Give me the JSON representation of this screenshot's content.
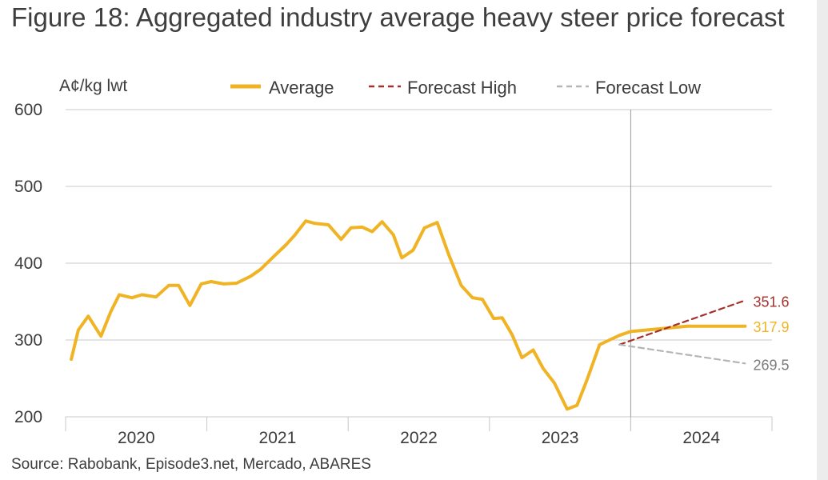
{
  "title": "Figure 18: Aggregated industry average heavy steer price forecast",
  "source": "Source: Rabobank, Episode3.net, Mercado, ABARES",
  "colors": {
    "average": "#f0b323",
    "high": "#a5302b",
    "low": "#b5b5b5",
    "grid": "#c8c8c8"
  },
  "chart_data": {
    "type": "line",
    "ylabel": "A¢/kg lwt",
    "ylim": [
      200,
      600
    ],
    "yticks": [
      200,
      300,
      400,
      500,
      600
    ],
    "xlim": [
      2019.58,
      2024.58
    ],
    "year_labels": [
      "2020",
      "2021",
      "2022",
      "2023",
      "2024"
    ],
    "forecast_start": 2023.58,
    "legend": [
      "Average",
      "Forecast High",
      "Forecast Low"
    ],
    "series": [
      {
        "name": "Average",
        "color": "#f0b323",
        "x": [
          2019.62,
          2019.67,
          2019.74,
          2019.83,
          2019.9,
          2019.96,
          2020.05,
          2020.12,
          2020.22,
          2020.31,
          2020.38,
          2020.46,
          2020.54,
          2020.61,
          2020.7,
          2020.79,
          2020.89,
          2020.96,
          2021.06,
          2021.14,
          2021.2,
          2021.28,
          2021.34,
          2021.44,
          2021.53,
          2021.6,
          2021.68,
          2021.75,
          2021.82,
          2021.9,
          2021.96,
          2022.04,
          2022.12,
          2022.21,
          2022.29,
          2022.38,
          2022.46,
          2022.53,
          2022.61,
          2022.67,
          2022.74,
          2022.81,
          2022.89,
          2022.96,
          2023.04,
          2023.13,
          2023.2,
          2023.27,
          2023.36,
          2023.43,
          2023.5,
          2023.58,
          2023.98,
          2024.39
        ],
        "values": [
          275,
          313,
          331,
          305,
          337,
          359,
          355,
          359,
          356,
          371,
          371,
          345,
          373,
          376,
          373,
          374,
          383,
          392,
          410,
          424,
          436,
          455,
          452,
          450,
          431,
          446,
          447,
          441,
          454,
          437,
          407,
          417,
          446,
          453,
          412,
          371,
          355,
          353,
          328,
          329,
          307,
          277,
          287,
          263,
          244,
          210,
          215,
          248,
          294,
          300,
          306,
          311,
          318,
          317.9
        ],
        "end_label": ""
      },
      {
        "name": "Forecast High",
        "color": "#a5302b",
        "x": [
          2023.5,
          2024.39
        ],
        "values": [
          294,
          351.6
        ],
        "end_label": "351.6"
      },
      {
        "name": "Forecast Low",
        "color": "#b5b5b5",
        "x": [
          2023.5,
          2024.39
        ],
        "values": [
          294,
          269.5
        ],
        "end_label": "269.5"
      }
    ],
    "average_end_label": "317.9",
    "grid": true,
    "legend_position": "top"
  }
}
